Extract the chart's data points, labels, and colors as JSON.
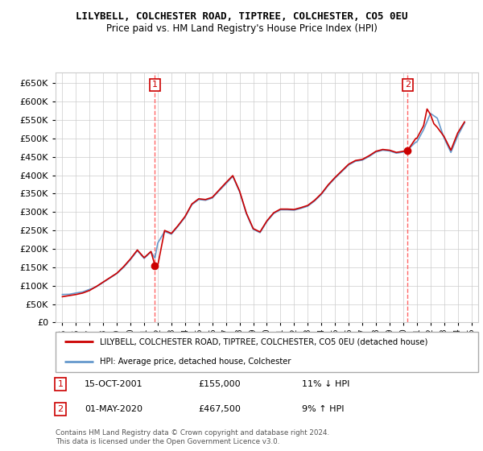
{
  "title": "LILYBELL, COLCHESTER ROAD, TIPTREE, COLCHESTER, CO5 0EU",
  "subtitle": "Price paid vs. HM Land Registry's House Price Index (HPI)",
  "legend_line1": "LILYBELL, COLCHESTER ROAD, TIPTREE, COLCHESTER, CO5 0EU (detached house)",
  "legend_line2": "HPI: Average price, detached house, Colchester",
  "footnote1": "Contains HM Land Registry data © Crown copyright and database right 2024.",
  "footnote2": "This data is licensed under the Open Government Licence v3.0.",
  "annotation1": {
    "label": "1",
    "date": "15-OCT-2001",
    "price": "£155,000",
    "hpi": "11% ↓ HPI"
  },
  "annotation2": {
    "label": "2",
    "date": "01-MAY-2020",
    "price": "£467,500",
    "hpi": "9% ↑ HPI"
  },
  "sale1_x": 2001.79,
  "sale1_y": 155000,
  "sale2_x": 2020.33,
  "sale2_y": 467500,
  "vline1_x": 2001.79,
  "vline2_x": 2020.33,
  "property_color": "#cc0000",
  "hpi_color": "#6699cc",
  "vline_color": "#ff6666",
  "ylim": [
    0,
    680000
  ],
  "yticks": [
    0,
    50000,
    100000,
    150000,
    200000,
    250000,
    300000,
    350000,
    400000,
    450000,
    500000,
    550000,
    600000,
    650000
  ],
  "xlim": [
    1994.5,
    2025.5
  ],
  "xticks": [
    1995,
    1996,
    1997,
    1998,
    1999,
    2000,
    2001,
    2002,
    2003,
    2004,
    2005,
    2006,
    2007,
    2008,
    2009,
    2010,
    2011,
    2012,
    2013,
    2014,
    2015,
    2016,
    2017,
    2018,
    2019,
    2020,
    2021,
    2022,
    2023,
    2024,
    2025
  ]
}
